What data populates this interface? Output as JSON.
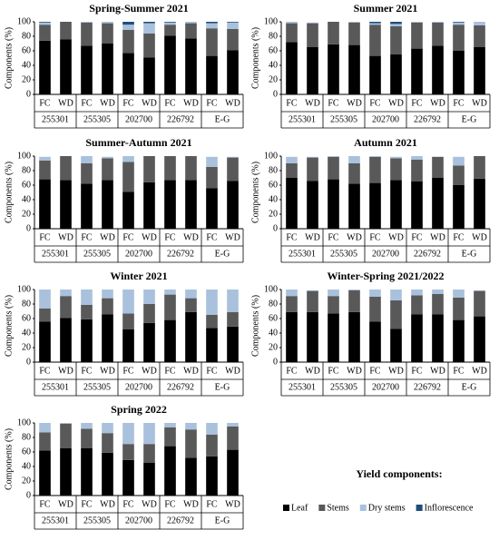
{
  "chart_data": [
    {
      "type": "stacked-bar",
      "title": "Spring-Summer 2021",
      "y_label": "Components (%)",
      "categories": [
        "FC",
        "WD",
        "FC",
        "WD",
        "FC",
        "WD",
        "FC",
        "WD",
        "FC",
        "WD"
      ],
      "groups": [
        "255301",
        "255305",
        "202700",
        "226792",
        "E-G"
      ],
      "ylim": [
        0,
        100
      ],
      "yticks": [
        0,
        20,
        40,
        60,
        80,
        100
      ],
      "series": [
        {
          "name": "Leaf",
          "color": "#000000",
          "values": [
            74,
            76,
            67,
            70,
            57,
            51,
            81,
            77,
            53,
            61
          ]
        },
        {
          "name": "Stems",
          "color": "#595959",
          "values": [
            22,
            24,
            32,
            28,
            32,
            33,
            15,
            21,
            38,
            29
          ]
        },
        {
          "name": "Dry stems",
          "color": "#a9c1dc",
          "values": [
            3,
            0,
            1,
            2,
            7,
            14,
            3,
            2,
            7,
            9
          ]
        },
        {
          "name": "Inflorescence",
          "color": "#1f4e79",
          "values": [
            1,
            0,
            0,
            0,
            4,
            2,
            1,
            0,
            2,
            1
          ]
        }
      ]
    },
    {
      "type": "stacked-bar",
      "title": "Summer 2021",
      "y_label": "Components (%)",
      "categories": [
        "FC",
        "WD",
        "FC",
        "WD",
        "FC",
        "WD",
        "FC",
        "WD",
        "FC",
        "WD"
      ],
      "groups": [
        "255301",
        "255305",
        "202700",
        "226792",
        "E-G"
      ],
      "ylim": [
        0,
        100
      ],
      "yticks": [
        0,
        20,
        40,
        60,
        80,
        100
      ],
      "series": [
        {
          "name": "Leaf",
          "color": "#000000",
          "values": [
            72,
            65,
            69,
            68,
            53,
            55,
            63,
            67,
            60,
            65
          ]
        },
        {
          "name": "Stems",
          "color": "#595959",
          "values": [
            26,
            33,
            31,
            31,
            43,
            39,
            36,
            32,
            36,
            30
          ]
        },
        {
          "name": "Dry stems",
          "color": "#a9c1dc",
          "values": [
            2,
            1,
            0,
            1,
            2,
            3,
            1,
            1,
            3,
            5
          ]
        },
        {
          "name": "Inflorescence",
          "color": "#1f4e79",
          "values": [
            0,
            0,
            0,
            0,
            2,
            3,
            0,
            0,
            1,
            0
          ]
        }
      ]
    },
    {
      "type": "stacked-bar",
      "title": "Summer-Autumn 2021",
      "y_label": "Components (%)",
      "categories": [
        "FC",
        "WD",
        "FC",
        "WD",
        "FC",
        "WD",
        "FC",
        "WD",
        "FC",
        "WD"
      ],
      "groups": [
        "255301",
        "255305",
        "202700",
        "226792",
        "E-G"
      ],
      "ylim": [
        0,
        100
      ],
      "yticks": [
        0,
        20,
        40,
        60,
        80,
        100
      ],
      "series": [
        {
          "name": "Leaf",
          "color": "#000000",
          "values": [
            68,
            67,
            62,
            67,
            51,
            64,
            67,
            67,
            56,
            66
          ]
        },
        {
          "name": "Stems",
          "color": "#595959",
          "values": [
            26,
            33,
            28,
            30,
            41,
            36,
            33,
            33,
            29,
            32
          ]
        },
        {
          "name": "Dry stems",
          "color": "#a9c1dc",
          "values": [
            5,
            0,
            10,
            2,
            8,
            0,
            0,
            0,
            14,
            1
          ]
        },
        {
          "name": "Inflorescence",
          "color": "#1f4e79",
          "values": [
            0,
            0,
            0,
            0,
            0,
            0,
            0,
            0,
            0,
            0
          ]
        }
      ]
    },
    {
      "type": "stacked-bar",
      "title": "Autumn 2021",
      "y_label": "Components (%)",
      "categories": [
        "FC",
        "WD",
        "FC",
        "WD",
        "FC",
        "WD",
        "FC",
        "WD",
        "FC",
        "WD"
      ],
      "groups": [
        "255301",
        "255305",
        "202700",
        "226792",
        "E-G"
      ],
      "ylim": [
        0,
        100
      ],
      "yticks": [
        0,
        20,
        40,
        60,
        80,
        100
      ],
      "series": [
        {
          "name": "Leaf",
          "color": "#000000",
          "values": [
            70,
            66,
            68,
            62,
            63,
            67,
            65,
            70,
            60,
            69
          ]
        },
        {
          "name": "Stems",
          "color": "#595959",
          "values": [
            20,
            32,
            31,
            28,
            36,
            30,
            30,
            29,
            27,
            31
          ]
        },
        {
          "name": "Dry stems",
          "color": "#a9c1dc",
          "values": [
            9,
            1,
            1,
            10,
            1,
            2,
            5,
            0,
            12,
            0
          ]
        },
        {
          "name": "Inflorescence",
          "color": "#1f4e79",
          "values": [
            0,
            0,
            0,
            0,
            0,
            0,
            0,
            0,
            0,
            0
          ]
        }
      ]
    },
    {
      "type": "stacked-bar",
      "title": "Winter 2021",
      "y_label": "Components (%)",
      "categories": [
        "FC",
        "WD",
        "FC",
        "WD",
        "FC",
        "WD",
        "FC",
        "WD",
        "FC",
        "WD"
      ],
      "groups": [
        "255301",
        "255305",
        "202700",
        "226792",
        "E-G"
      ],
      "ylim": [
        0,
        100
      ],
      "yticks": [
        0,
        20,
        40,
        60,
        80,
        100
      ],
      "series": [
        {
          "name": "Leaf",
          "color": "#000000",
          "values": [
            56,
            61,
            59,
            66,
            45,
            54,
            58,
            69,
            47,
            49
          ]
        },
        {
          "name": "Stems",
          "color": "#595959",
          "values": [
            18,
            30,
            20,
            22,
            22,
            26,
            35,
            19,
            18,
            20
          ]
        },
        {
          "name": "Dry stems",
          "color": "#a9c1dc",
          "values": [
            26,
            9,
            21,
            12,
            33,
            20,
            7,
            12,
            35,
            31
          ]
        },
        {
          "name": "Inflorescence",
          "color": "#1f4e79",
          "values": [
            0,
            0,
            0,
            0,
            0,
            0,
            0,
            0,
            0,
            0
          ]
        }
      ]
    },
    {
      "type": "stacked-bar",
      "title": "Winter-Spring 2021/2022",
      "y_label": "Components (%)",
      "categories": [
        "FC",
        "WD",
        "FC",
        "WD",
        "FC",
        "WD",
        "FC",
        "WD",
        "FC",
        "WD"
      ],
      "groups": [
        "255301",
        "255305",
        "202700",
        "226792",
        "E-G"
      ],
      "ylim": [
        0,
        100
      ],
      "yticks": [
        0,
        20,
        40,
        60,
        80,
        100
      ],
      "series": [
        {
          "name": "Leaf",
          "color": "#000000",
          "values": [
            69,
            69,
            67,
            69,
            56,
            46,
            66,
            66,
            58,
            63
          ]
        },
        {
          "name": "Stems",
          "color": "#595959",
          "values": [
            22,
            29,
            24,
            30,
            34,
            39,
            26,
            28,
            31,
            35
          ]
        },
        {
          "name": "Dry stems",
          "color": "#a9c1dc",
          "values": [
            9,
            1,
            9,
            1,
            10,
            15,
            8,
            6,
            11,
            1
          ]
        },
        {
          "name": "Inflorescence",
          "color": "#1f4e79",
          "values": [
            0,
            0,
            0,
            0,
            0,
            0,
            0,
            0,
            0,
            0
          ]
        }
      ]
    },
    {
      "type": "stacked-bar",
      "title": "Spring 2022",
      "y_label": "Components (%)",
      "categories": [
        "FC",
        "WD",
        "FC",
        "WD",
        "FC",
        "WD",
        "FC",
        "WD",
        "FC",
        "WD"
      ],
      "groups": [
        "255301",
        "255305",
        "202700",
        "226792",
        "E-G"
      ],
      "ylim": [
        0,
        100
      ],
      "yticks": [
        0,
        20,
        40,
        60,
        80,
        100
      ],
      "series": [
        {
          "name": "Leaf",
          "color": "#000000",
          "values": [
            62,
            65,
            65,
            59,
            49,
            45,
            68,
            52,
            54,
            63
          ]
        },
        {
          "name": "Stems",
          "color": "#595959",
          "values": [
            25,
            34,
            27,
            27,
            22,
            26,
            26,
            39,
            30,
            32
          ]
        },
        {
          "name": "Dry stems",
          "color": "#a9c1dc",
          "values": [
            13,
            1,
            8,
            14,
            29,
            29,
            6,
            9,
            16,
            5
          ]
        },
        {
          "name": "Inflorescence",
          "color": "#1f4e79",
          "values": [
            0,
            0,
            0,
            0,
            0,
            0,
            0,
            0,
            0,
            0
          ]
        }
      ]
    }
  ],
  "legend": {
    "title": "Yield components:"
  }
}
